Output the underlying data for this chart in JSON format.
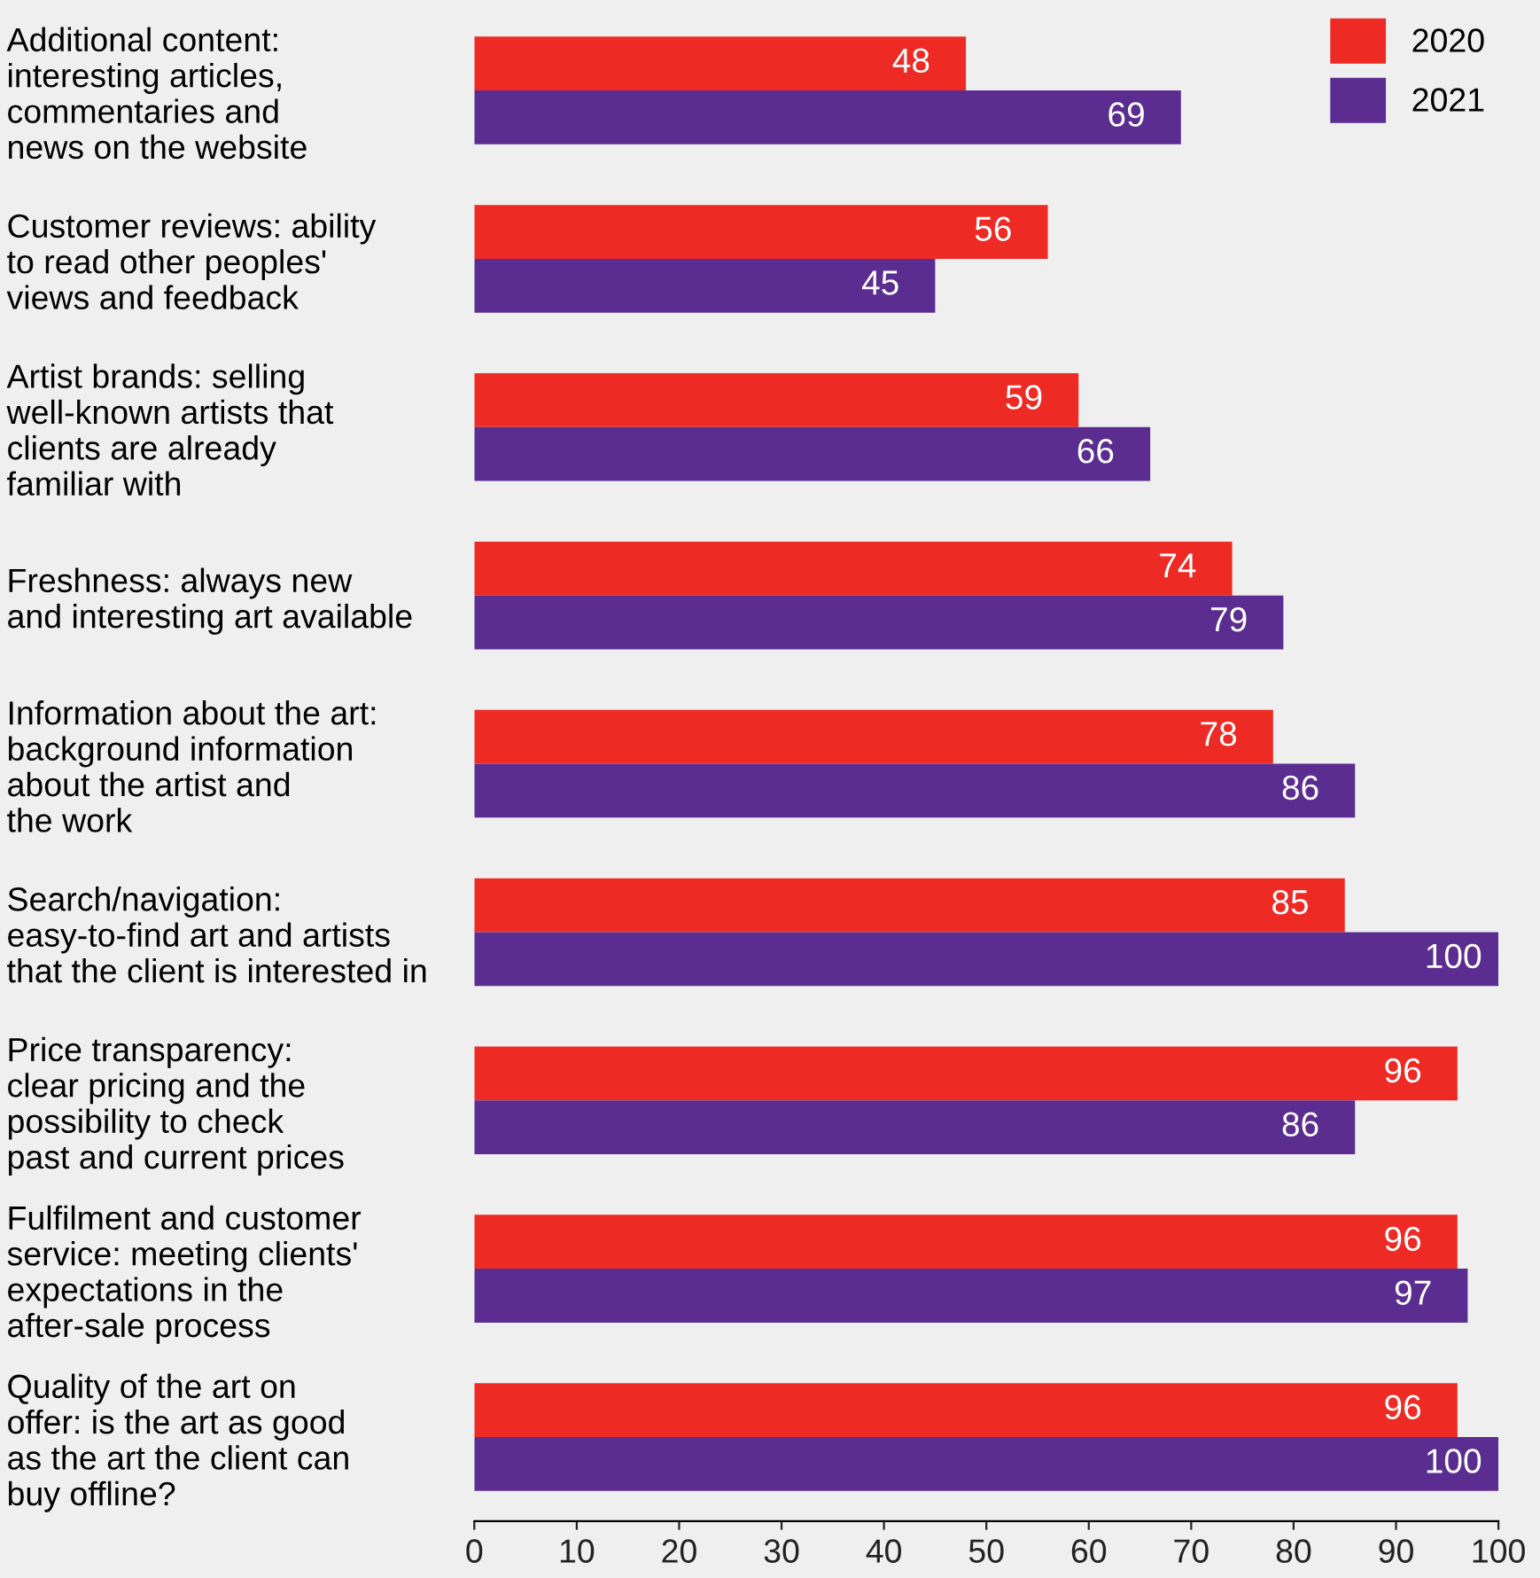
{
  "chart_data": {
    "type": "bar",
    "orientation": "horizontal",
    "categories": [
      "Additional content:\ninteresting articles,\ncommentaries and\nnews on the website",
      "Customer reviews: ability\nto read other peoples'\nviews and feedback",
      "Artist brands: selling\nwell-known artists that\nclients are already\nfamiliar with",
      "Freshness: always new\nand interesting art available",
      "Information about the art:\nbackground information\nabout the artist and\nthe work",
      "Search/navigation:\neasy-to-find art and artists\nthat the client is interested in",
      "Price transparency:\nclear pricing and the\npossibility to check\npast and current prices",
      "Fulfilment and customer\nservice: meeting clients'\nexpectations in the\nafter-sale process",
      "Quality of the art on\noffer: is the art as good\nas the art the client can\nbuy offline?"
    ],
    "series": [
      {
        "name": "2020",
        "color": "#ee2a24",
        "values": [
          48,
          56,
          59,
          74,
          78,
          85,
          96,
          96,
          96
        ]
      },
      {
        "name": "2021",
        "color": "#5c2d91",
        "values": [
          69,
          45,
          66,
          79,
          86,
          100,
          86,
          97,
          100
        ]
      }
    ],
    "xlim": [
      0,
      100
    ],
    "xticks": [
      0,
      10,
      20,
      30,
      40,
      50,
      60,
      70,
      80,
      90,
      100
    ],
    "data_labels": true,
    "legend": "top right",
    "grid": false
  }
}
